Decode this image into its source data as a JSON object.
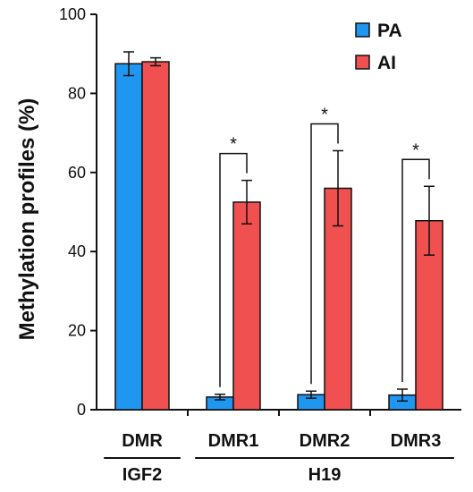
{
  "chart_data": {
    "type": "bar",
    "ylabel": "Methylation profiles (%)",
    "ylim": [
      0,
      100
    ],
    "yticks": [
      "0",
      "20",
      "40",
      "60",
      "80",
      "100"
    ],
    "categories": [
      "DMR",
      "DMR1",
      "DMR2",
      "DMR3"
    ],
    "groups": [
      {
        "label": "IGF2",
        "categories": [
          "DMR"
        ]
      },
      {
        "label": "H19",
        "categories": [
          "DMR1",
          "DMR2",
          "DMR3"
        ]
      }
    ],
    "series": [
      {
        "name": "PA",
        "color": "#1f96f0",
        "values": [
          87.5,
          3.2,
          3.8,
          3.7
        ],
        "errors": [
          3.0,
          0.7,
          0.9,
          1.5
        ]
      },
      {
        "name": "AI",
        "color": "#f05050",
        "values": [
          88.0,
          52.5,
          56.0,
          47.8
        ],
        "errors": [
          1.0,
          5.5,
          9.5,
          8.7
        ]
      }
    ],
    "significance": [
      "",
      "*",
      "*",
      "*"
    ],
    "legend_position": "top-right"
  }
}
